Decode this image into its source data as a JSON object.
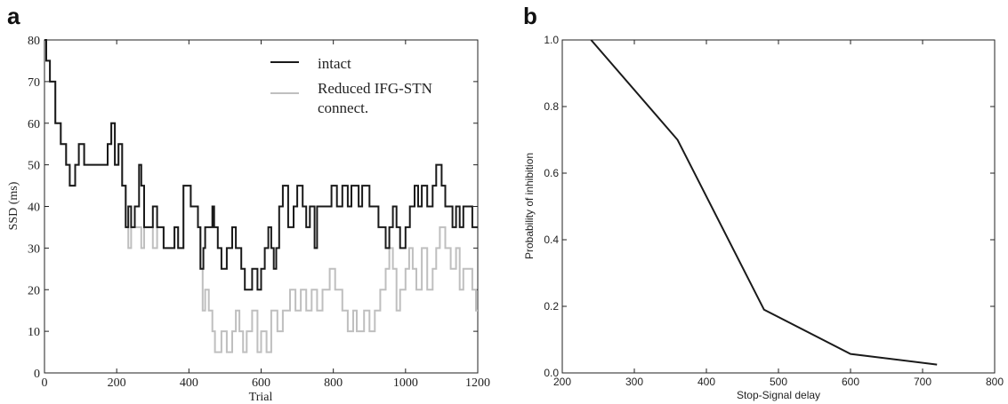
{
  "chart_data": [
    {
      "panel_label": "a",
      "type": "line",
      "xlabel": "Trial",
      "ylabel": "SSD (ms)",
      "xlim": [
        0,
        1200
      ],
      "ylim": [
        0,
        80
      ],
      "xticks": [
        "0",
        "200",
        "400",
        "600",
        "800",
        "1000",
        "1200"
      ],
      "yticks": [
        "0",
        "10",
        "20",
        "30",
        "40",
        "50",
        "60",
        "70",
        "80"
      ],
      "grid": false,
      "legend_position": "top-right",
      "series": [
        {
          "name": "intact",
          "color": "#1a1a1a",
          "points": [
            [
              0,
              80
            ],
            [
              5,
              75
            ],
            [
              15,
              70
            ],
            [
              30,
              60
            ],
            [
              45,
              55
            ],
            [
              60,
              50
            ],
            [
              70,
              45
            ],
            [
              85,
              50
            ],
            [
              95,
              55
            ],
            [
              110,
              50
            ],
            [
              175,
              55
            ],
            [
              185,
              60
            ],
            [
              195,
              50
            ],
            [
              205,
              55
            ],
            [
              215,
              45
            ],
            [
              225,
              35
            ],
            [
              232,
              40
            ],
            [
              240,
              35
            ],
            [
              250,
              40
            ],
            [
              262,
              50
            ],
            [
              268,
              45
            ],
            [
              276,
              35
            ],
            [
              290,
              35
            ],
            [
              300,
              40
            ],
            [
              312,
              35
            ],
            [
              330,
              30
            ],
            [
              350,
              30
            ],
            [
              360,
              35
            ],
            [
              370,
              30
            ],
            [
              385,
              45
            ],
            [
              405,
              40
            ],
            [
              425,
              35
            ],
            [
              432,
              25
            ],
            [
              440,
              30
            ],
            [
              445,
              35
            ],
            [
              460,
              35
            ],
            [
              465,
              40
            ],
            [
              470,
              35
            ],
            [
              480,
              30
            ],
            [
              490,
              25
            ],
            [
              505,
              30
            ],
            [
              520,
              35
            ],
            [
              530,
              30
            ],
            [
              545,
              25
            ],
            [
              555,
              20
            ],
            [
              575,
              25
            ],
            [
              590,
              20
            ],
            [
              600,
              25
            ],
            [
              610,
              30
            ],
            [
              620,
              35
            ],
            [
              628,
              30
            ],
            [
              635,
              25
            ],
            [
              642,
              30
            ],
            [
              650,
              40
            ],
            [
              660,
              45
            ],
            [
              675,
              35
            ],
            [
              690,
              40
            ],
            [
              700,
              45
            ],
            [
              715,
              40
            ],
            [
              725,
              35
            ],
            [
              735,
              40
            ],
            [
              748,
              30
            ],
            [
              755,
              40
            ],
            [
              780,
              40
            ],
            [
              795,
              45
            ],
            [
              810,
              40
            ],
            [
              825,
              45
            ],
            [
              840,
              40
            ],
            [
              850,
              45
            ],
            [
              870,
              40
            ],
            [
              880,
              45
            ],
            [
              900,
              40
            ],
            [
              925,
              35
            ],
            [
              945,
              30
            ],
            [
              955,
              35
            ],
            [
              965,
              40
            ],
            [
              975,
              35
            ],
            [
              985,
              30
            ],
            [
              1000,
              35
            ],
            [
              1012,
              40
            ],
            [
              1025,
              45
            ],
            [
              1035,
              40
            ],
            [
              1045,
              45
            ],
            [
              1060,
              40
            ],
            [
              1075,
              45
            ],
            [
              1085,
              50
            ],
            [
              1100,
              45
            ],
            [
              1110,
              40
            ],
            [
              1130,
              35
            ],
            [
              1140,
              40
            ],
            [
              1150,
              35
            ],
            [
              1160,
              40
            ],
            [
              1175,
              40
            ],
            [
              1185,
              35
            ],
            [
              1200,
              35
            ]
          ]
        },
        {
          "name": "Reduced IFG-STN connect.",
          "color": "#bfbfbf",
          "points": [
            [
              0,
              80
            ],
            [
              5,
              75
            ],
            [
              15,
              70
            ],
            [
              30,
              60
            ],
            [
              45,
              55
            ],
            [
              60,
              50
            ],
            [
              70,
              45
            ],
            [
              85,
              50
            ],
            [
              95,
              55
            ],
            [
              110,
              50
            ],
            [
              175,
              55
            ],
            [
              185,
              60
            ],
            [
              195,
              50
            ],
            [
              205,
              55
            ],
            [
              215,
              45
            ],
            [
              225,
              35
            ],
            [
              232,
              30
            ],
            [
              240,
              35
            ],
            [
              262,
              35
            ],
            [
              268,
              30
            ],
            [
              276,
              35
            ],
            [
              290,
              35
            ],
            [
              300,
              30
            ],
            [
              312,
              35
            ],
            [
              330,
              30
            ],
            [
              350,
              30
            ],
            [
              360,
              35
            ],
            [
              370,
              30
            ],
            [
              385,
              45
            ],
            [
              405,
              40
            ],
            [
              425,
              35
            ],
            [
              432,
              25
            ],
            [
              438,
              15
            ],
            [
              445,
              20
            ],
            [
              455,
              15
            ],
            [
              465,
              10
            ],
            [
              472,
              5
            ],
            [
              490,
              10
            ],
            [
              505,
              5
            ],
            [
              520,
              10
            ],
            [
              530,
              15
            ],
            [
              540,
              10
            ],
            [
              550,
              5
            ],
            [
              560,
              10
            ],
            [
              575,
              15
            ],
            [
              590,
              5
            ],
            [
              600,
              10
            ],
            [
              615,
              5
            ],
            [
              628,
              15
            ],
            [
              645,
              10
            ],
            [
              660,
              15
            ],
            [
              680,
              20
            ],
            [
              695,
              15
            ],
            [
              710,
              20
            ],
            [
              725,
              15
            ],
            [
              740,
              20
            ],
            [
              755,
              15
            ],
            [
              770,
              20
            ],
            [
              790,
              25
            ],
            [
              805,
              20
            ],
            [
              825,
              15
            ],
            [
              840,
              10
            ],
            [
              855,
              15
            ],
            [
              865,
              10
            ],
            [
              885,
              15
            ],
            [
              900,
              10
            ],
            [
              915,
              15
            ],
            [
              930,
              20
            ],
            [
              945,
              25
            ],
            [
              955,
              30
            ],
            [
              965,
              25
            ],
            [
              975,
              15
            ],
            [
              985,
              20
            ],
            [
              1000,
              25
            ],
            [
              1010,
              30
            ],
            [
              1020,
              25
            ],
            [
              1030,
              20
            ],
            [
              1045,
              30
            ],
            [
              1060,
              20
            ],
            [
              1075,
              25
            ],
            [
              1085,
              30
            ],
            [
              1095,
              35
            ],
            [
              1110,
              30
            ],
            [
              1125,
              25
            ],
            [
              1140,
              30
            ],
            [
              1150,
              20
            ],
            [
              1160,
              25
            ],
            [
              1175,
              25
            ],
            [
              1185,
              20
            ],
            [
              1195,
              15
            ],
            [
              1200,
              15
            ]
          ]
        }
      ]
    },
    {
      "panel_label": "b",
      "type": "line",
      "xlabel": "Stop-Signal delay",
      "ylabel": "Probability of inhibition",
      "xlim": [
        200,
        800
      ],
      "ylim": [
        0,
        1
      ],
      "xticks": [
        "200",
        "300",
        "400",
        "500",
        "600",
        "700",
        "800"
      ],
      "yticks": [
        "0.0",
        "0.2",
        "0.4",
        "0.6",
        "0.8",
        "1.0"
      ],
      "grid": false,
      "series": [
        {
          "color": "#1a1a1a",
          "x": [
            240,
            360,
            480,
            600,
            720
          ],
          "y": [
            1.0,
            0.7,
            0.19,
            0.057,
            0.025
          ]
        }
      ]
    }
  ]
}
